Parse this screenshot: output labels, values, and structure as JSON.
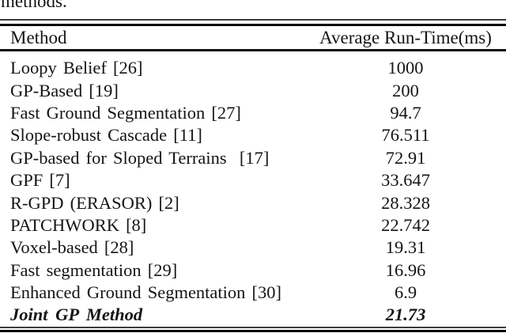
{
  "intro": {
    "text": "methods."
  },
  "table": {
    "header": {
      "method": "Method",
      "runtime": "Average Run-Time(ms)"
    },
    "rows": [
      {
        "method": "Loopy Belief [26]",
        "runtime": "1000"
      },
      {
        "method": "GP-Based [19]",
        "runtime": "200"
      },
      {
        "method": "Fast Ground Segmentation [27]",
        "runtime": "94.7"
      },
      {
        "method": "Slope-robust Cascade [11]",
        "runtime": "76.511"
      },
      {
        "method": "GP-based for Sloped Terrains  [17]",
        "runtime": "72.91"
      },
      {
        "method": "GPF [7]",
        "runtime": "33.647"
      },
      {
        "method": "R-GPD (ERASOR) [2]",
        "runtime": "28.328"
      },
      {
        "method": "PATCHWORK [8]",
        "runtime": "22.742"
      },
      {
        "method": "Voxel-based [28]",
        "runtime": "19.31"
      },
      {
        "method": "Fast segmentation [29]",
        "runtime": "16.96"
      },
      {
        "method": "Enhanced Ground Segmentation [30]",
        "runtime": "6.9"
      },
      {
        "method": "Joint GP Method",
        "runtime": "21.73"
      }
    ]
  },
  "chart_data": {
    "type": "table",
    "columns": [
      "Method",
      "Average Run-Time(ms)"
    ],
    "categories": [
      "Loopy Belief [26]",
      "GP-Based [19]",
      "Fast Ground Segmentation [27]",
      "Slope-robust Cascade [11]",
      "GP-based for Sloped Terrains [17]",
      "GPF [7]",
      "R-GPD (ERASOR) [2]",
      "PATCHWORK [8]",
      "Voxel-based [28]",
      "Fast segmentation [29]",
      "Enhanced Ground Segmentation [30]",
      "Joint GP Method"
    ],
    "values": [
      1000,
      200,
      94.7,
      76.511,
      72.91,
      33.647,
      28.328,
      22.742,
      19.31,
      16.96,
      6.9,
      21.73
    ]
  }
}
